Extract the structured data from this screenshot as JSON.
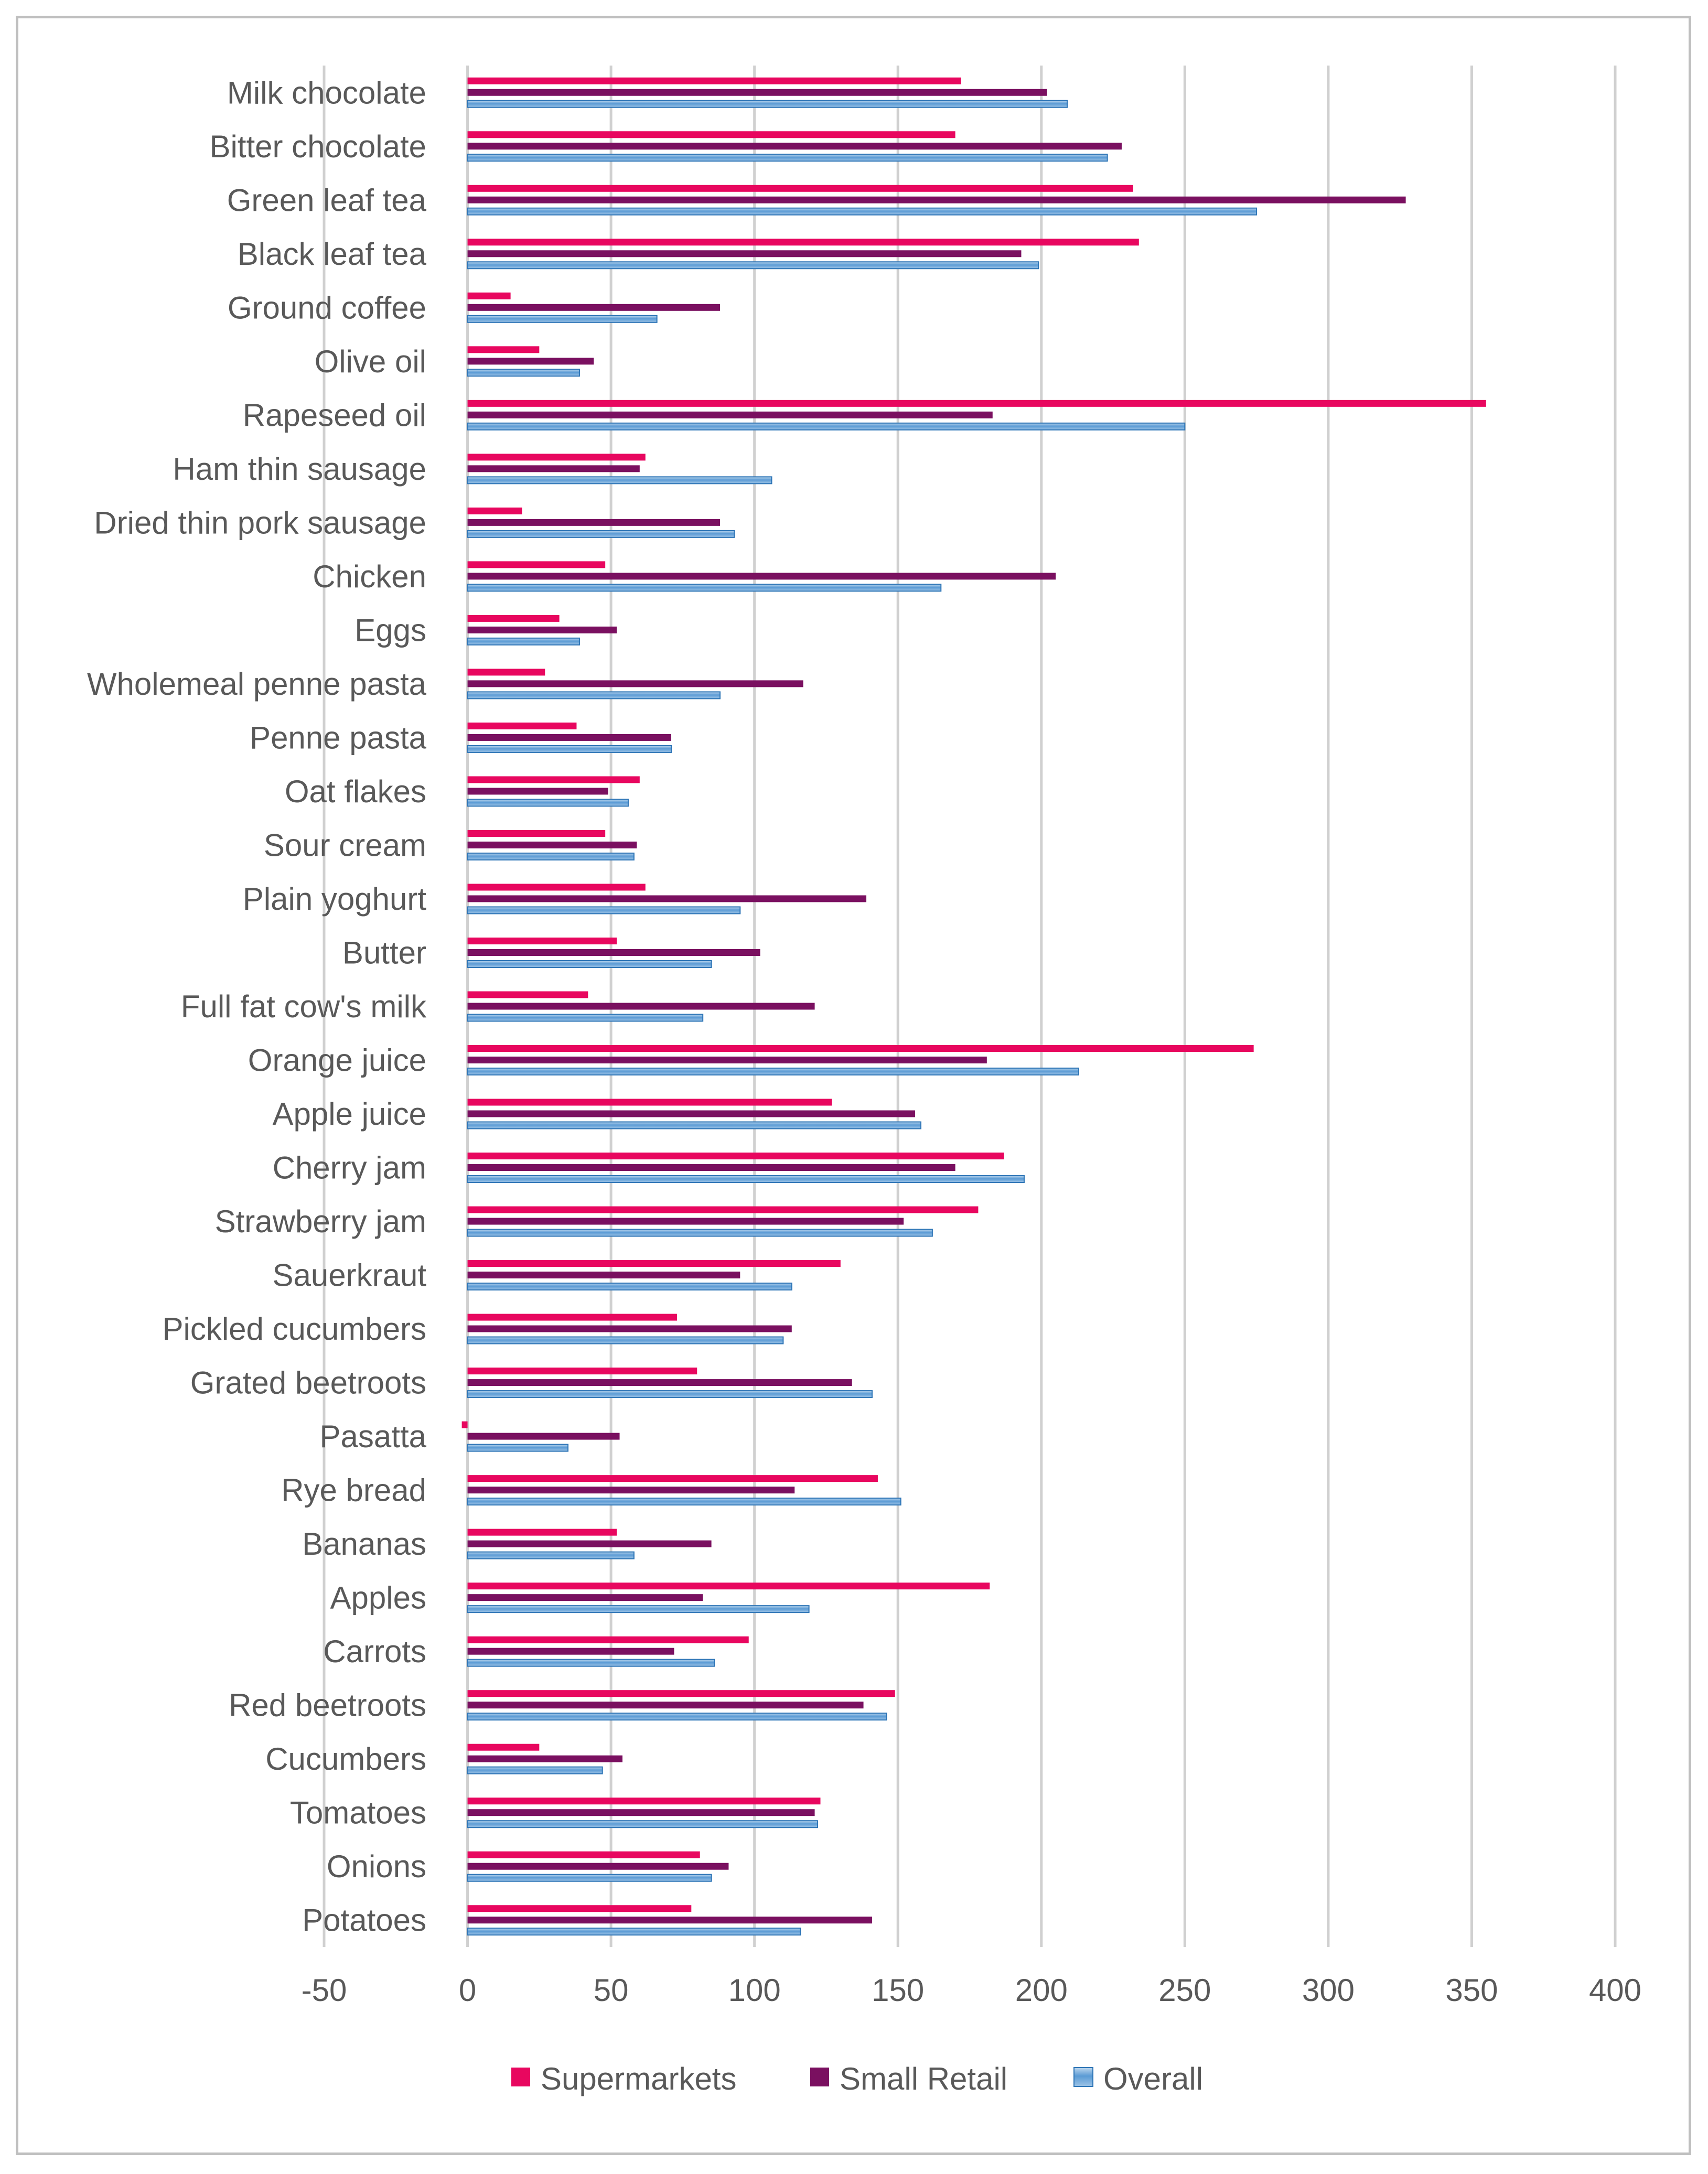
{
  "chart_data": {
    "type": "bar",
    "orientation": "horizontal",
    "title": "",
    "xlabel": "",
    "ylabel": "",
    "xlim": [
      -50,
      400
    ],
    "x_ticks": [
      -50,
      0,
      50,
      100,
      150,
      200,
      250,
      300,
      350,
      400
    ],
    "grid": true,
    "legend_position": "bottom",
    "categories": [
      "Milk chocolate",
      "Bitter chocolate",
      "Green leaf tea",
      "Black leaf  tea",
      "Ground coffee",
      "Olive oil",
      "Rapeseed oil",
      "Ham thin sausage",
      "Dried thin pork sausage",
      "Chicken",
      "Eggs",
      "Wholemeal penne pasta",
      "Penne pasta",
      "Oat flakes",
      "Sour cream",
      "Plain yoghurt",
      "Butter",
      "Full fat cow's milk",
      "Orange juice",
      "Apple juice",
      "Cherry jam",
      "Strawberry jam",
      "Sauerkraut",
      "Pickled cucumbers",
      "Grated beetroots",
      "Pasatta",
      "Rye bread",
      "Bananas",
      "Apples",
      "Carrots",
      "Red beetroots",
      "Cucumbers",
      "Tomatoes",
      "Onions",
      "Potatoes"
    ],
    "series": [
      {
        "name": "Supermarkets",
        "color": "#e8075f",
        "values": [
          172,
          170,
          232,
          234,
          15,
          25,
          355,
          62,
          19,
          48,
          32,
          27,
          38,
          60,
          48,
          62,
          52,
          42,
          274,
          127,
          187,
          178,
          130,
          73,
          80,
          -2,
          143,
          52,
          182,
          98,
          149,
          25,
          123,
          81,
          78
        ]
      },
      {
        "name": "Small Retail",
        "color": "#7a1060",
        "values": [
          202,
          228,
          327,
          193,
          88,
          44,
          183,
          60,
          88,
          205,
          52,
          117,
          71,
          49,
          59,
          139,
          102,
          121,
          181,
          156,
          170,
          152,
          95,
          113,
          134,
          53,
          114,
          85,
          82,
          72,
          138,
          54,
          121,
          91,
          141
        ]
      },
      {
        "name": "Overall",
        "color": "#5b9bd5",
        "values": [
          209,
          223,
          275,
          199,
          66,
          39,
          250,
          106,
          93,
          165,
          39,
          88,
          71,
          56,
          58,
          95,
          85,
          82,
          213,
          158,
          194,
          162,
          113,
          110,
          141,
          35,
          151,
          58,
          119,
          86,
          146,
          47,
          122,
          85,
          116
        ]
      }
    ]
  }
}
